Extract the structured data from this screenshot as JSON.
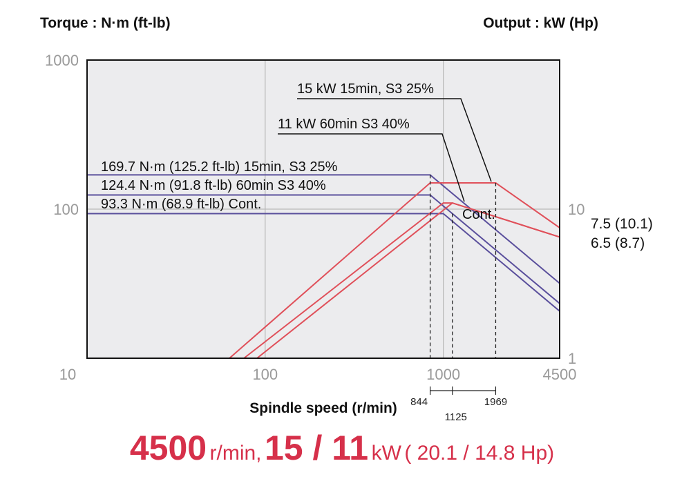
{
  "chart_data": {
    "type": "line",
    "title": "",
    "ylabel": "Torque : N·m (ft-lb)",
    "y2label": "Output : kW (Hp)",
    "xlabel": "Spindle speed (r/min)",
    "x_scale": "log",
    "y_scale": "log",
    "y2_scale": "log",
    "xlim": [
      10,
      4500
    ],
    "ylim": [
      10,
      1000
    ],
    "y2lim": [
      1,
      10
    ],
    "grid": true,
    "x_ticks": [
      {
        "value": 10,
        "label": "10"
      },
      {
        "value": 100,
        "label": "100"
      },
      {
        "value": 1000,
        "label": "1000"
      },
      {
        "value": 4500,
        "label": "4500"
      }
    ],
    "y_ticks": [
      {
        "value": 1000,
        "label": "1000"
      },
      {
        "value": 100,
        "label": "100"
      }
    ],
    "y2_ticks": [
      {
        "value": 10,
        "label": "10"
      },
      {
        "value": 1,
        "label": "1"
      }
    ],
    "corner_speeds": [
      {
        "value": 844,
        "label": "844"
      },
      {
        "value": 1125,
        "label": "1125"
      },
      {
        "value": 1969,
        "label": "1969"
      }
    ],
    "series": [
      {
        "axis": "torque",
        "color": "#5a4f9c",
        "x": [
          10,
          844,
          4500
        ],
        "y": [
          169.7,
          169.7,
          31.8
        ]
      },
      {
        "axis": "torque",
        "color": "#5a4f9c",
        "x": [
          10,
          844,
          4500
        ],
        "y": [
          124.4,
          124.4,
          23.3
        ]
      },
      {
        "axis": "torque",
        "color": "#5a4f9c",
        "x": [
          10,
          1000,
          4500
        ],
        "y": [
          93.3,
          93.3,
          20.7
        ]
      },
      {
        "axis": "output",
        "color": "#e0505a",
        "x": [
          63,
          844,
          1969,
          4500
        ],
        "y": [
          1,
          15,
          15,
          7.5
        ]
      },
      {
        "axis": "output",
        "color": "#e0505a",
        "x": [
          76,
          1000,
          1125,
          4500
        ],
        "y": [
          1,
          11,
          11,
          6.5
        ]
      },
      {
        "axis": "output",
        "color": "#e0505a",
        "x": [
          90,
          1125,
          4500
        ],
        "y": [
          1,
          11,
          6.5
        ]
      }
    ],
    "annotations": [
      {
        "text": "15 kW 15min, S3 25%"
      },
      {
        "text": "11 kW 60min S3 40%"
      },
      {
        "text": "169.7 N·m (125.2 ft-lb) 15min, S3 25%"
      },
      {
        "text": "124.4 N·m (91.8 ft-lb) 60min S3 40%"
      },
      {
        "text": "93.3 N·m (68.9 ft-lb) Cont."
      },
      {
        "text": "Cont."
      }
    ],
    "right_values": [
      "7.5 (10.1)",
      "6.5 (8.7)"
    ]
  },
  "headline": {
    "speed": "4500",
    "speed_unit": "r/min,",
    "power": "15 / 11",
    "power_unit": "kW",
    "hp": "( 20.1 / 14.8 Hp)"
  }
}
